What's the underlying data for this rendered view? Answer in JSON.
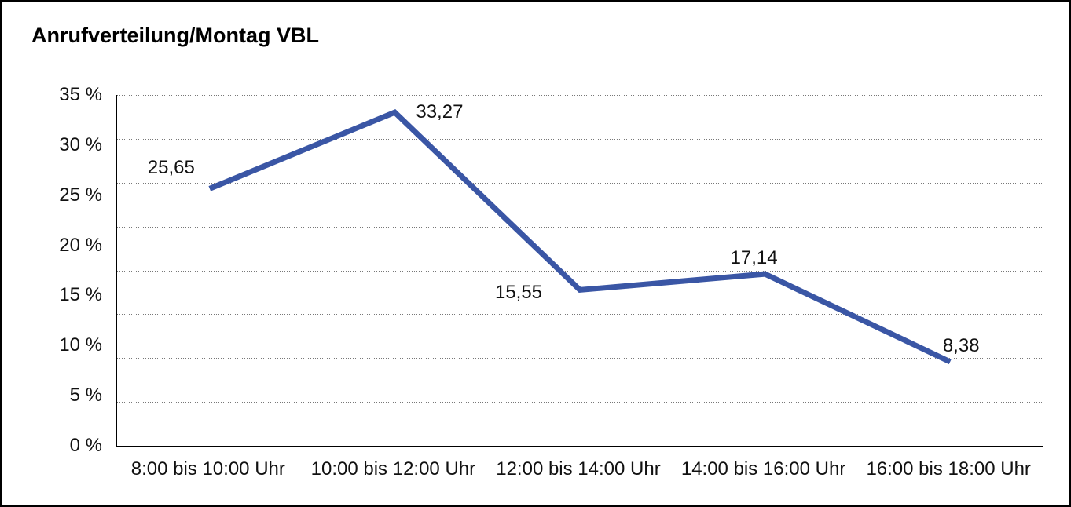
{
  "chart_data": {
    "type": "line",
    "title": "Anrufverteilung/Montag VBL",
    "categories": [
      "8:00 bis 10:00 Uhr",
      "10:00 bis 12:00 Uhr",
      "12:00 bis 14:00 Uhr",
      "14:00 bis 16:00 Uhr",
      "16:00 bis 18:00 Uhr"
    ],
    "series": [
      {
        "values": [
          25.65,
          33.27,
          15.55,
          17.14,
          8.38
        ]
      }
    ],
    "value_labels": [
      "25,65",
      "33,27",
      "15,55",
      "17,14",
      "8,38"
    ],
    "xlabel": "",
    "ylabel": "",
    "ylim": [
      0,
      35
    ],
    "y_tick_values": [
      35,
      30,
      25,
      20,
      15,
      10,
      5,
      0
    ],
    "y_tick_labels": [
      "35 %",
      "30 %",
      "25 %",
      "20 %",
      "15 %",
      "10 %",
      "5 %",
      "0 %"
    ],
    "grid": "dotted-horizontal",
    "gridline_divisions": 8,
    "legend": "none",
    "colors": {
      "line": "#3A56A5",
      "axis": "#000000",
      "gridline": "#777777",
      "text": "#111111",
      "background": "#ffffff"
    }
  }
}
